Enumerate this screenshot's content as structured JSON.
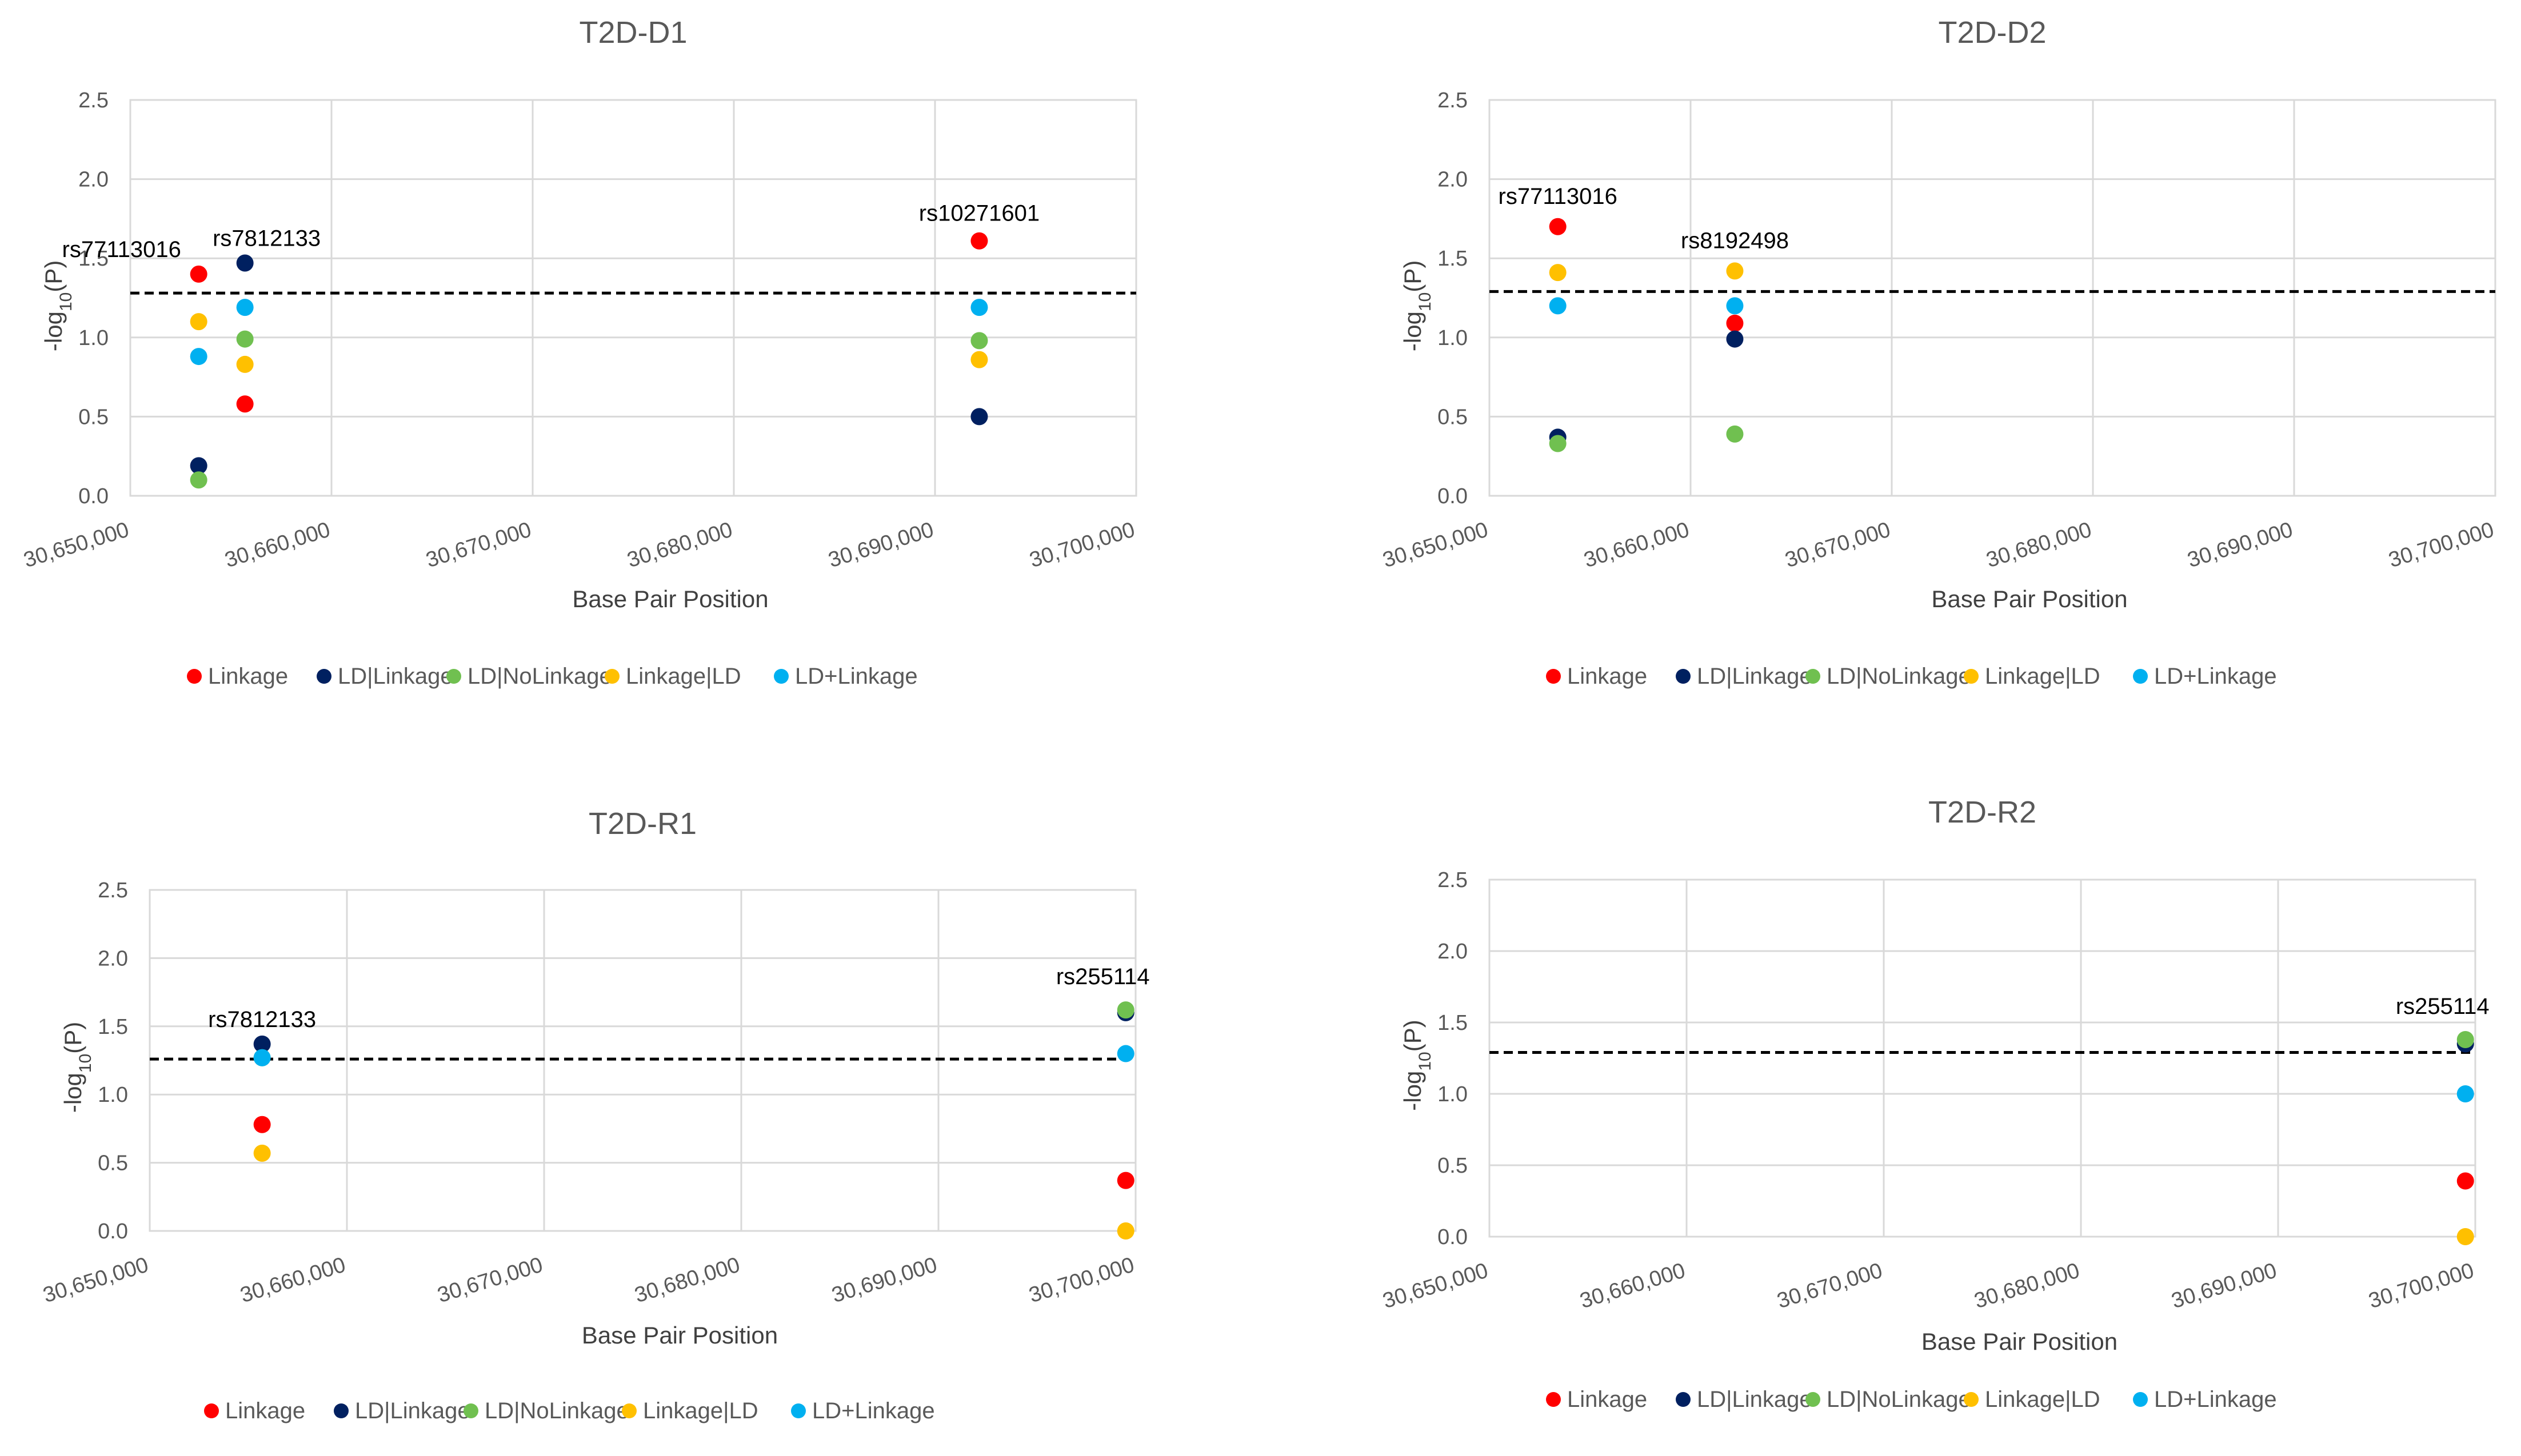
{
  "colors": {
    "Linkage": "#ff0000",
    "LD|Linkage": "#002060",
    "LD|NoLinkage": "#70c050",
    "Linkage|LD": "#ffc000",
    "LD+Linkage": "#00b0f0"
  },
  "legend": [
    "Linkage",
    "LD|Linkage",
    "LD|NoLinkage",
    "Linkage|LD",
    "LD+Linkage"
  ],
  "chart_data": [
    {
      "type": "scatter",
      "title": "T2D-D1",
      "xlabel": "Base Pair Position",
      "ylabel": "-log10(P)",
      "xlim": [
        30650000,
        30700000
      ],
      "ylim": [
        0,
        2.5
      ],
      "xticks": [
        "30,650,000",
        "30,660,000",
        "30,670,000",
        "30,680,000",
        "30,690,000",
        "30,700,000"
      ],
      "yticks": [
        "0.0",
        "0.5",
        "1.0",
        "1.5",
        "2.0",
        "2.5"
      ],
      "threshold": 1.28,
      "grid": true,
      "legend_position": "bottom",
      "series": [
        {
          "name": "Linkage",
          "points": [
            [
              30653400,
              1.4
            ],
            [
              30655700,
              0.58
            ],
            [
              30692200,
              1.61
            ]
          ]
        },
        {
          "name": "LD|Linkage",
          "points": [
            [
              30653400,
              0.19
            ],
            [
              30655700,
              1.47
            ],
            [
              30692200,
              0.5
            ]
          ]
        },
        {
          "name": "LD|NoLinkage",
          "points": [
            [
              30653400,
              0.1
            ],
            [
              30655700,
              0.99
            ],
            [
              30692200,
              0.98
            ]
          ]
        },
        {
          "name": "Linkage|LD",
          "points": [
            [
              30653400,
              1.1
            ],
            [
              30655700,
              0.83
            ],
            [
              30692200,
              0.86
            ]
          ]
        },
        {
          "name": "LD+Linkage",
          "points": [
            [
              30653400,
              0.88
            ],
            [
              30655700,
              1.19
            ],
            [
              30692200,
              1.19
            ]
          ]
        }
      ],
      "annotations": [
        {
          "text": "rs77113016",
          "x": 30653400,
          "y": 1.4
        },
        {
          "text": "rs7812133",
          "x": 30655700,
          "y": 1.47
        },
        {
          "text": "rs10271601",
          "x": 30692200,
          "y": 1.61
        }
      ]
    },
    {
      "type": "scatter",
      "title": "T2D-D2",
      "xlabel": "Base Pair Position",
      "ylabel": "-log10(P)",
      "xlim": [
        30650000,
        30700000
      ],
      "ylim": [
        0,
        2.5
      ],
      "xticks": [
        "30,650,000",
        "30,660,000",
        "30,670,000",
        "30,680,000",
        "30,690,000",
        "30,700,000"
      ],
      "yticks": [
        "0.0",
        "0.5",
        "1.0",
        "1.5",
        "2.0",
        "2.5"
      ],
      "threshold": 1.29,
      "grid": true,
      "legend_position": "bottom",
      "series": [
        {
          "name": "Linkage",
          "points": [
            [
              30653400,
              1.7
            ],
            [
              30662200,
              1.09
            ]
          ]
        },
        {
          "name": "LD|Linkage",
          "points": [
            [
              30653400,
              0.37
            ],
            [
              30662200,
              0.99
            ]
          ]
        },
        {
          "name": "LD|NoLinkage",
          "points": [
            [
              30653400,
              0.33
            ],
            [
              30662200,
              0.39
            ]
          ]
        },
        {
          "name": "Linkage|LD",
          "points": [
            [
              30653400,
              1.41
            ],
            [
              30662200,
              1.42
            ]
          ]
        },
        {
          "name": "LD+Linkage",
          "points": [
            [
              30653400,
              1.2
            ],
            [
              30662200,
              1.2
            ]
          ]
        }
      ],
      "annotations": [
        {
          "text": "rs77113016",
          "x": 30653400,
          "y": 1.7
        },
        {
          "text": "rs8192498",
          "x": 30662200,
          "y": 1.42
        }
      ]
    },
    {
      "type": "scatter",
      "title": "T2D-R1",
      "xlabel": "Base Pair Position",
      "ylabel": "-log10(P)",
      "xlim": [
        30650000,
        30700000
      ],
      "ylim": [
        0,
        2.5
      ],
      "xticks": [
        "30,650,000",
        "30,660,000",
        "30,670,000",
        "30,680,000",
        "30,690,000",
        "30,700,000"
      ],
      "yticks": [
        "0.0",
        "0.5",
        "1.0",
        "1.5",
        "2.0",
        "2.5"
      ],
      "threshold": 1.26,
      "grid": true,
      "legend_position": "bottom",
      "series": [
        {
          "name": "Linkage",
          "points": [
            [
              30655700,
              0.78
            ],
            [
              30699500,
              0.37
            ]
          ]
        },
        {
          "name": "LD|Linkage",
          "points": [
            [
              30655700,
              1.37
            ],
            [
              30699500,
              1.6
            ]
          ]
        },
        {
          "name": "LD|NoLinkage",
          "points": [
            [
              30655700,
              1.27
            ],
            [
              30699500,
              1.62
            ]
          ]
        },
        {
          "name": "Linkage|LD",
          "points": [
            [
              30655700,
              0.57
            ],
            [
              30699500,
              0.0
            ]
          ]
        },
        {
          "name": "LD+Linkage",
          "points": [
            [
              30655700,
              1.27
            ],
            [
              30699500,
              1.3
            ]
          ]
        }
      ],
      "annotations": [
        {
          "text": "rs7812133",
          "x": 30655700,
          "y": 1.37
        },
        {
          "text": "rs255114",
          "x": 30699500,
          "y": 1.62
        }
      ]
    },
    {
      "type": "scatter",
      "title": "T2D-R2",
      "xlabel": "Base Pair Position",
      "ylabel": "-log10(P)",
      "xlim": [
        30650000,
        30700000
      ],
      "ylim": [
        0,
        2.5
      ],
      "xticks": [
        "30,650,000",
        "30,660,000",
        "30,670,000",
        "30,680,000",
        "30,690,000",
        "30,700,000"
      ],
      "yticks": [
        "0.0",
        "0.5",
        "1.0",
        "1.5",
        "2.0",
        "2.5"
      ],
      "threshold": 1.29,
      "grid": true,
      "legend_position": "bottom",
      "series": [
        {
          "name": "Linkage",
          "points": [
            [
              30699500,
              0.39
            ]
          ]
        },
        {
          "name": "LD|Linkage",
          "points": [
            [
              30699500,
              1.35
            ]
          ]
        },
        {
          "name": "LD|NoLinkage",
          "points": [
            [
              30699500,
              1.38
            ]
          ]
        },
        {
          "name": "Linkage|LD",
          "points": [
            [
              30699500,
              0.0
            ]
          ]
        },
        {
          "name": "LD+Linkage",
          "points": [
            [
              30699500,
              1.0
            ]
          ]
        }
      ],
      "annotations": [
        {
          "text": "rs255114",
          "x": 30699500,
          "y": 1.38
        }
      ]
    }
  ]
}
